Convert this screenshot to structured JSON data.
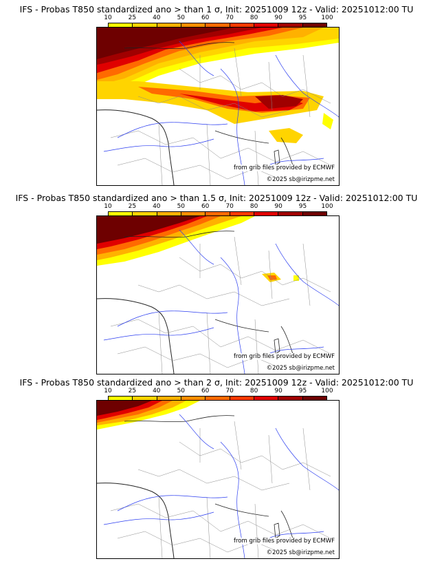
{
  "legend": {
    "ticks": [
      "10",
      "25",
      "40",
      "50",
      "60",
      "70",
      "80",
      "90",
      "95",
      "100"
    ],
    "colors": [
      "#ffff00",
      "#ffd400",
      "#ffb100",
      "#ff8e00",
      "#ff6a00",
      "#ff3a00",
      "#e00000",
      "#a00000",
      "#6e0000"
    ]
  },
  "panels": [
    {
      "title": "IFS - Probas T850  standardized ano > than 1 σ, Init: 20251009 12z - Valid: 20251012:00 TU",
      "source": "from grib files provided by ECMWF",
      "copyright": "©2025 sb@irizpme.net"
    },
    {
      "title": "IFS - Probas T850  standardized ano > than 1.5 σ, Init: 20251009 12z - Valid: 20251012:00 TU",
      "source": "from grib files provided by ECMWF",
      "copyright": "©2025 sb@irizpme.net"
    },
    {
      "title": "IFS - Probas T850  standardized ano > than 2 σ, Init: 20251009 12z - Valid: 20251012:00 TU",
      "source": "from grib files provided by ECMWF",
      "copyright": "©2025 sb@irizpme.net"
    }
  ]
}
